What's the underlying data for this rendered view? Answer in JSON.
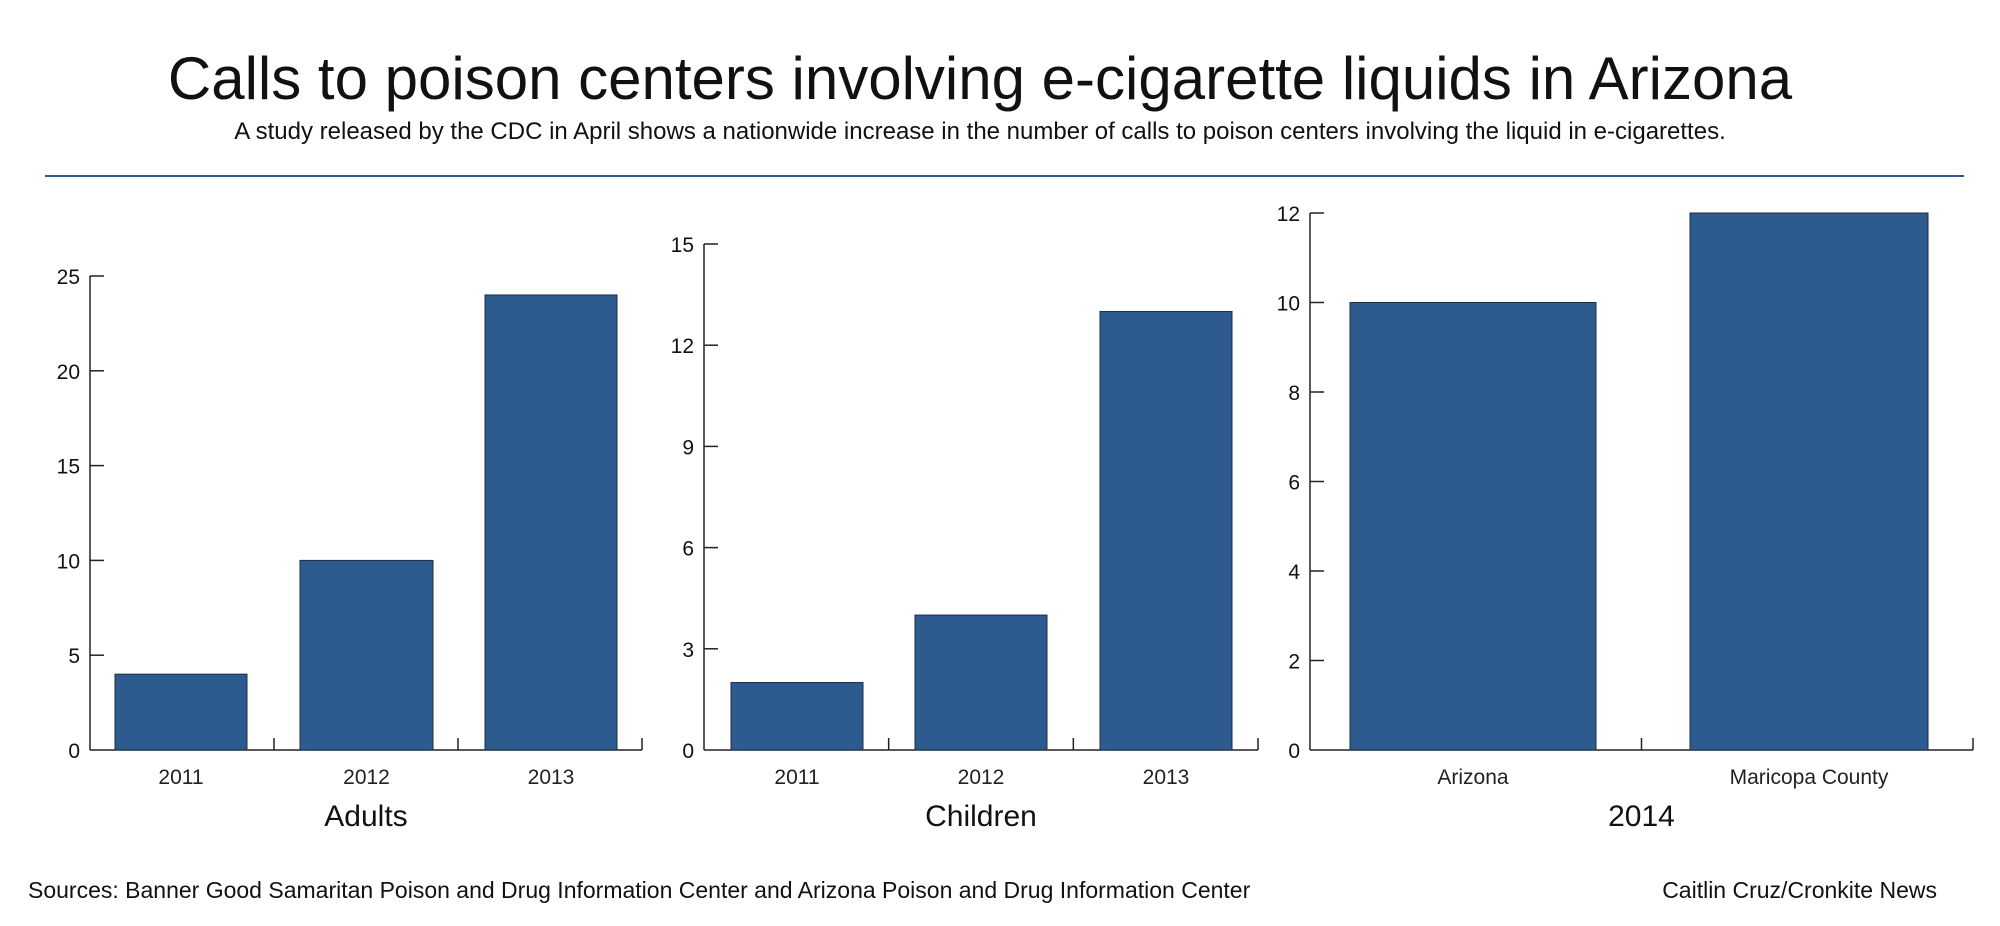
{
  "header": {
    "title": "Calls to poison centers involving e-cigarette liquids in Arizona",
    "subtitle": "A study released by the CDC in April shows a nationwide increase in the number of calls to poison centers involving the liquid in e-cigarettes."
  },
  "footer": {
    "sources": "Sources: Banner Good Samaritan Poison and Drug Information Center and Arizona Poison and Drug Information Center",
    "credit": "Caitlin Cruz/Cronkite News"
  },
  "colors": {
    "bar": "#2e5b8f",
    "rule": "#2f5b91"
  },
  "chart_data": [
    {
      "type": "bar",
      "title": "Adults",
      "categories": [
        "2011",
        "2012",
        "2013"
      ],
      "values": [
        4,
        10,
        24
      ],
      "ylim": [
        0,
        25
      ],
      "yticks": [
        0,
        5,
        10,
        15,
        20,
        25
      ]
    },
    {
      "type": "bar",
      "title": "Children",
      "categories": [
        "2011",
        "2012",
        "2013"
      ],
      "values": [
        2,
        4,
        13
      ],
      "ylim": [
        0,
        15
      ],
      "yticks": [
        0,
        3,
        6,
        9,
        12,
        15
      ]
    },
    {
      "type": "bar",
      "title": "2014",
      "categories": [
        "Arizona",
        "Maricopa County"
      ],
      "values": [
        10,
        12
      ],
      "ylim": [
        0,
        12
      ],
      "yticks": [
        0,
        2,
        4,
        6,
        8,
        10,
        12
      ]
    }
  ]
}
